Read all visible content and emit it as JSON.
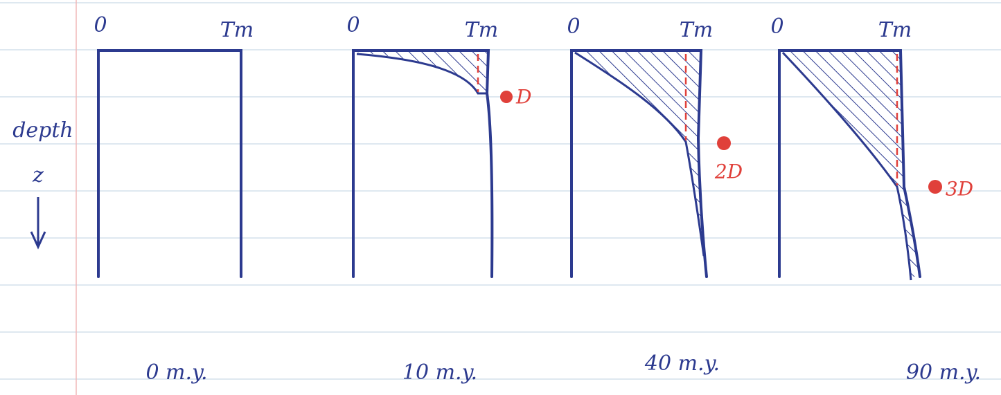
{
  "axis": {
    "depth": "depth",
    "z": "z"
  },
  "panels": [
    {
      "left_label": "0",
      "right_label": "Tm",
      "time": "0 m.y."
    },
    {
      "left_label": "0",
      "right_label": "Tm",
      "time": "10 m.y.",
      "marker": "D"
    },
    {
      "left_label": "0",
      "right_label": "Tm",
      "time": "40 m.y.",
      "marker": "2D"
    },
    {
      "left_label": "0",
      "right_label": "Tm",
      "time": "90 m.y.",
      "marker": "3D"
    }
  ]
}
